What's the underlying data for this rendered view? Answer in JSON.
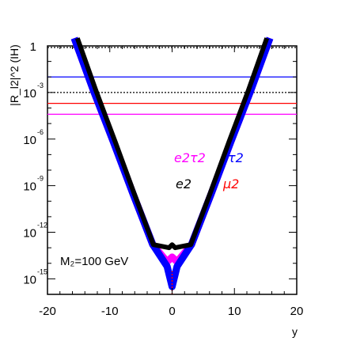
{
  "chart_data": {
    "type": "line",
    "ylabel": "|R_l2|^2 (IH)",
    "xlabel": "y",
    "xlim": [
      -20,
      20
    ],
    "ylim_log10": [
      -16,
      0
    ],
    "yscale": "log",
    "grid": false,
    "x_ticks": [
      "-20",
      "-10",
      "0",
      "10",
      "20"
    ],
    "y_ticks": [
      {
        "base": "1",
        "exp": ""
      },
      {
        "base": "10",
        "exp": "-3"
      },
      {
        "base": "10",
        "exp": "-6"
      },
      {
        "base": "10",
        "exp": "-9"
      },
      {
        "base": "10",
        "exp": "-12"
      },
      {
        "base": "10",
        "exp": "-15"
      }
    ],
    "annotation": "M₂=100 GeV",
    "series": [
      {
        "name": "e2τ2",
        "color": "#ff00ff",
        "band": {
          "x": [
            -15.7,
            -12.6,
            -9.4,
            -6.3,
            -3.1,
            -0.8,
            0,
            0.8,
            3.1,
            6.3,
            9.4,
            12.6,
            15.7
          ],
          "log10_y": [
            0.5,
            -2.9,
            -6.2,
            -9.5,
            -12.8,
            -13.9,
            -13.6,
            -13.9,
            -12.8,
            -9.5,
            -6.2,
            -2.9,
            0.5
          ]
        },
        "hline_log10": -4.4
      },
      {
        "name": "τ2",
        "color": "#0000ff",
        "band": {
          "x": [
            -15.7,
            -12.6,
            -9.4,
            -6.3,
            -3.1,
            -0.8,
            0,
            0.8,
            3.1,
            6.3,
            9.4,
            12.6,
            15.7
          ],
          "log10_y": [
            0.5,
            -2.9,
            -6.2,
            -9.5,
            -12.8,
            -14.2,
            -15.5,
            -14.2,
            -12.8,
            -9.5,
            -6.2,
            -2.9,
            0.5
          ]
        },
        "hline_log10": -2.0
      },
      {
        "name": "e2",
        "color": "#000000",
        "band": {
          "x": [
            -15.2,
            -12.2,
            -9.1,
            -6.1,
            -3.0,
            -0.5,
            0,
            0.5,
            3.0,
            6.1,
            9.1,
            12.2,
            15.2
          ],
          "log10_y": [
            0.5,
            -2.9,
            -6.2,
            -9.5,
            -12.8,
            -13.0,
            -12.8,
            -13.0,
            -12.8,
            -9.5,
            -6.2,
            -2.9,
            0.5
          ]
        },
        "hlines_log10": [
          -0.1,
          -3.0
        ]
      },
      {
        "name": "μ2",
        "color": "#ff0000",
        "band": {
          "x": [
            0,
            0
          ],
          "log10_y": [
            -16,
            -14.5
          ]
        },
        "hline_log10": -3.7
      }
    ]
  }
}
